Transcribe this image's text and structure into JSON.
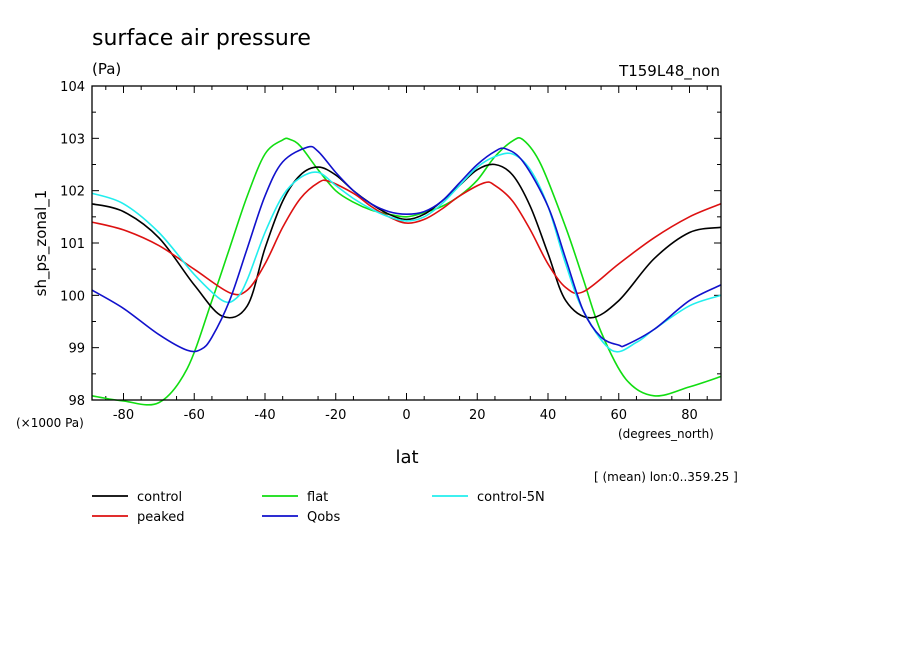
{
  "chart_data": {
    "type": "line",
    "title": "surface air pressure",
    "units": "(Pa)",
    "run_label": "T159L48_non",
    "xlabel": "lat",
    "x_units": "(degrees_north)",
    "ylabel": "sh_ps_zonal_1",
    "y_scale_note": "(×1000 Pa)",
    "averaging_note": "[ (mean) lon:0..359.25 ]",
    "xlim": [
      -88.9,
      88.9
    ],
    "ylim": [
      98,
      104
    ],
    "xticks": [
      -80,
      -60,
      -40,
      -20,
      0,
      20,
      40,
      60,
      80
    ],
    "yticks": [
      98,
      99,
      100,
      101,
      102,
      103,
      104
    ],
    "series": [
      {
        "name": "control",
        "color": "#000000",
        "x": [
          -88.9,
          -80,
          -70,
          -60,
          -52,
          -45,
          -40,
          -35,
          -30,
          -25,
          -20,
          -15,
          -10,
          -5,
          0,
          5,
          10,
          15,
          20,
          25,
          30,
          35,
          40,
          45,
          52,
          60,
          70,
          80,
          88.9
        ],
        "y": [
          101.75,
          101.6,
          101.1,
          100.2,
          99.6,
          99.8,
          100.9,
          101.8,
          102.3,
          102.45,
          102.3,
          102.0,
          101.75,
          101.55,
          101.45,
          101.55,
          101.8,
          102.1,
          102.4,
          102.5,
          102.3,
          101.7,
          100.8,
          99.9,
          99.57,
          99.9,
          100.7,
          101.2,
          101.3
        ]
      },
      {
        "name": "peaked",
        "color": "#dd1111",
        "x": [
          -88.9,
          -80,
          -70,
          -60,
          -50,
          -45,
          -40,
          -35,
          -30,
          -25,
          -22,
          -15,
          -10,
          -5,
          0,
          5,
          10,
          15,
          22,
          25,
          30,
          35,
          40,
          45,
          50,
          60,
          70,
          80,
          88.9
        ],
        "y": [
          101.4,
          101.25,
          100.95,
          100.5,
          100.05,
          100.1,
          100.6,
          101.3,
          101.85,
          102.15,
          102.18,
          101.95,
          101.7,
          101.5,
          101.38,
          101.45,
          101.65,
          101.9,
          102.15,
          102.1,
          101.8,
          101.25,
          100.6,
          100.15,
          100.07,
          100.6,
          101.1,
          101.5,
          101.75
        ]
      },
      {
        "name": "flat",
        "color": "#11dd11",
        "x": [
          -88.9,
          -80,
          -70,
          -62,
          -55,
          -50,
          -45,
          -40,
          -35,
          -33,
          -30,
          -25,
          -20,
          -15,
          -10,
          -5,
          0,
          5,
          10,
          15,
          20,
          25,
          30,
          33,
          38,
          45,
          50,
          55,
          62,
          70,
          80,
          88.9
        ],
        "y": [
          98.08,
          97.98,
          97.95,
          98.6,
          99.9,
          100.9,
          101.9,
          102.7,
          102.97,
          102.98,
          102.85,
          102.4,
          102.0,
          101.78,
          101.63,
          101.55,
          101.5,
          101.58,
          101.7,
          101.9,
          102.2,
          102.65,
          102.95,
          102.97,
          102.5,
          101.3,
          100.3,
          99.3,
          98.4,
          98.08,
          98.25,
          98.45
        ]
      },
      {
        "name": "control-5N",
        "color": "#22eeee",
        "x": [
          -88.9,
          -80,
          -70,
          -60,
          -52,
          -48,
          -45,
          -40,
          -35,
          -30,
          -25,
          -20,
          -15,
          -10,
          -5,
          0,
          5,
          10,
          15,
          20,
          25,
          30,
          35,
          40,
          45,
          50,
          58,
          65,
          70,
          80,
          88.9
        ],
        "y": [
          101.95,
          101.75,
          101.2,
          100.4,
          99.9,
          99.95,
          100.3,
          101.2,
          101.9,
          102.25,
          102.35,
          102.1,
          101.85,
          101.65,
          101.5,
          101.42,
          101.5,
          101.75,
          102.1,
          102.45,
          102.65,
          102.7,
          102.4,
          101.7,
          100.6,
          99.7,
          98.95,
          99.1,
          99.35,
          99.8,
          100.0
        ]
      },
      {
        "name": "Qobs",
        "color": "#1111cc",
        "x": [
          -88.9,
          -80,
          -70,
          -62,
          -58,
          -55,
          -50,
          -45,
          -40,
          -35,
          -28,
          -25,
          -20,
          -15,
          -10,
          -5,
          0,
          5,
          10,
          15,
          20,
          25,
          28,
          33,
          40,
          45,
          50,
          55,
          60,
          62,
          70,
          80,
          88.9
        ],
        "y": [
          100.1,
          99.75,
          99.25,
          98.95,
          98.97,
          99.2,
          99.9,
          100.9,
          101.9,
          102.55,
          102.83,
          102.75,
          102.35,
          102.0,
          101.75,
          101.6,
          101.55,
          101.6,
          101.8,
          102.15,
          102.5,
          102.75,
          102.8,
          102.55,
          101.7,
          100.7,
          99.7,
          99.2,
          99.05,
          99.05,
          99.35,
          99.9,
          100.2
        ]
      }
    ]
  }
}
